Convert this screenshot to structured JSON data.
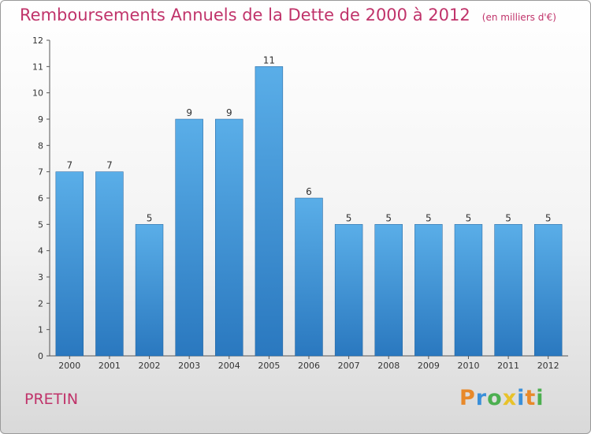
{
  "chart_data": {
    "type": "bar",
    "title": "Remboursements Annuels de la Dette de 2000 à 2012",
    "subtitle": "(en milliers d'€)",
    "categories": [
      "2000",
      "2001",
      "2002",
      "2003",
      "2004",
      "2005",
      "2006",
      "2007",
      "2008",
      "2009",
      "2010",
      "2011",
      "2012"
    ],
    "values": [
      7,
      7,
      5,
      9,
      9,
      11,
      6,
      5,
      5,
      5,
      5,
      5,
      5
    ],
    "ylim": [
      0,
      12
    ],
    "yticks": [
      0,
      1,
      2,
      3,
      4,
      5,
      6,
      7,
      8,
      9,
      10,
      11,
      12
    ],
    "grid": false,
    "bar_color": "#3c8fd6"
  },
  "commune": "PRETIN",
  "logo": {
    "text": "Proxiti",
    "colors": [
      "#e8892a",
      "#3a8fd9",
      "#4caf50",
      "#e8c22a",
      "#3a8fd9",
      "#e8892a",
      "#4caf50"
    ]
  }
}
